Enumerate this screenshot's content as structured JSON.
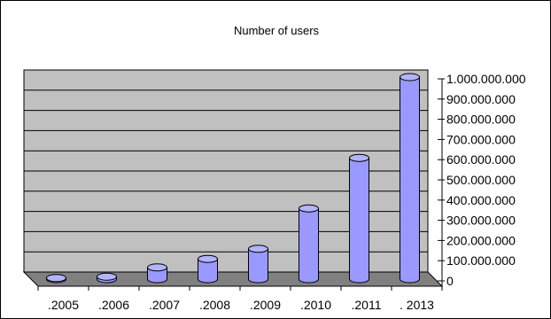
{
  "chart_data": {
    "type": "bar",
    "style": "3d-cylinder",
    "title": "Number of users",
    "xlabel": "",
    "ylabel": "",
    "categories": [
      ".2005",
      ".2006",
      ".2007",
      ".2008",
      ".2009",
      ".2010",
      ".2011",
      ". 2013"
    ],
    "series": [
      {
        "values": [
          5500000,
          12000000,
          58000000,
          100000000,
          150000000,
          350000000,
          600000000,
          1000000000
        ]
      }
    ],
    "ylim": [
      0,
      1000000000
    ],
    "yticks": [
      "0",
      "100.000.000",
      "200.000.000",
      "300.000.000",
      "400.000.000",
      "500.000.000",
      "600.000.000",
      "700.000.000",
      "800.000.000",
      "900.000.000",
      "1.000.000.000"
    ],
    "grid": true,
    "legend": "none",
    "axis_position": "right",
    "colors": {
      "bar_fill": "#9999ff",
      "bar_top": "#b3b3ff",
      "plot_wall": "#c0c0c0",
      "plot_floor": "#808080",
      "grid": "#000000"
    }
  }
}
